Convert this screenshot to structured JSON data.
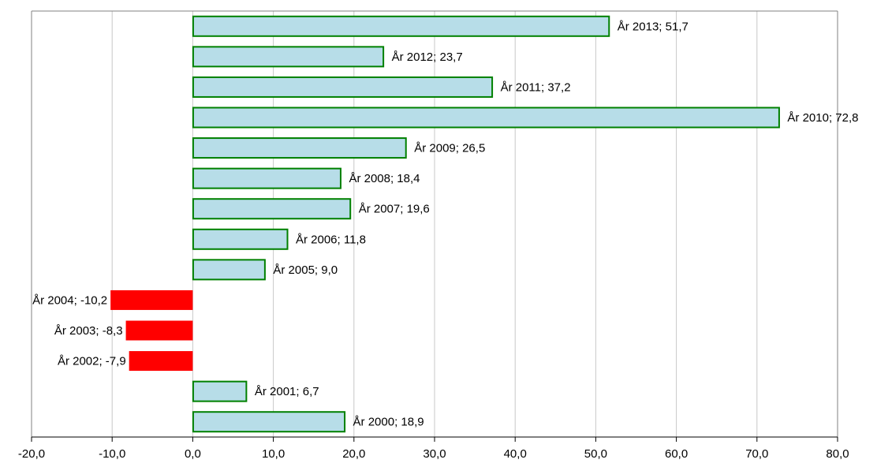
{
  "chart_data": {
    "type": "bar",
    "orientation": "horizontal",
    "categories": [
      "2000",
      "2001",
      "2002",
      "2003",
      "2004",
      "2005",
      "2006",
      "2007",
      "2008",
      "2009",
      "2010",
      "2011",
      "2012",
      "2013"
    ],
    "values": [
      18.9,
      6.7,
      -7.9,
      -8.3,
      -10.2,
      9.0,
      11.8,
      19.6,
      18.4,
      26.5,
      72.8,
      37.2,
      23.7,
      51.7
    ],
    "data_labels": [
      "År 2000; 18,9",
      "År 2001; 6,7",
      "År 2002; -7,9",
      "År 2003; -8,3",
      "År 2004; -10,2",
      "År 2005; 9,0",
      "År 2006; 11,8",
      "År 2007; 19,6",
      "År 2008; 18,4",
      "År 2009; 26,5",
      "År 2010; 72,8",
      "År 2011; 37,2",
      "År 2012; 23,7",
      "År 2013; 51,7"
    ],
    "xlim": [
      -20,
      80
    ],
    "x_ticks": [
      -20,
      -10,
      0,
      10,
      20,
      30,
      40,
      50,
      60,
      70,
      80
    ],
    "x_tick_labels": [
      "-20,0",
      "-10,0",
      "0,0",
      "10,0",
      "20,0",
      "30,0",
      "40,0",
      "50,0",
      "60,0",
      "70,0",
      "80,0"
    ],
    "grid": "vertical",
    "colors": {
      "positive_fill": "#b7dde8",
      "positive_stroke": "#008000",
      "negative_fill": "#ff0000",
      "gridline": "#c8c8c8",
      "axis": "#808080"
    },
    "title": "",
    "xlabel": "",
    "ylabel": ""
  }
}
